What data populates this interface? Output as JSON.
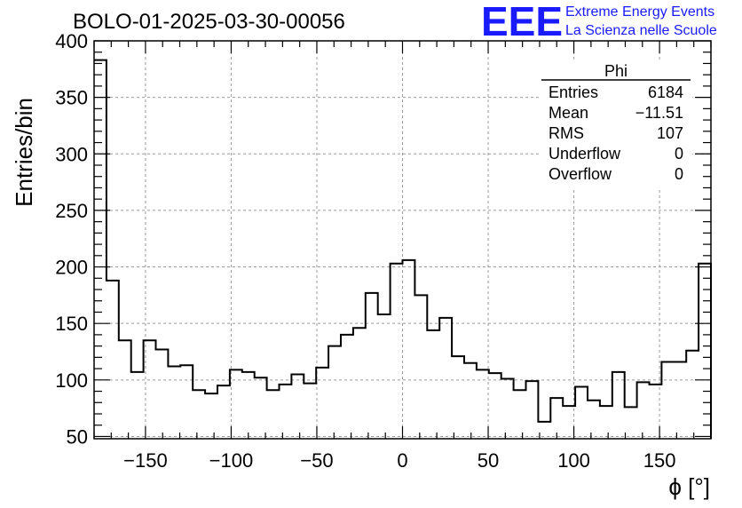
{
  "chart_data": {
    "type": "bar",
    "title": "BOLO-01-2025-03-30-00056",
    "xlabel": "ϕ [°]",
    "ylabel": "Entries/bin",
    "xlim": [
      -180,
      180
    ],
    "ylim": [
      48,
      400
    ],
    "bin_width": 7.2,
    "x_ticks": [
      -150,
      -100,
      -50,
      0,
      50,
      100,
      150
    ],
    "x_tick_labels": [
      "−150",
      "−100",
      "−50",
      "0",
      "50",
      "100",
      "150"
    ],
    "y_ticks": [
      50,
      100,
      150,
      200,
      250,
      300,
      350,
      400
    ],
    "y_tick_labels": [
      "50",
      "100",
      "150",
      "200",
      "250",
      "300",
      "350",
      "400"
    ],
    "grid": true,
    "values": [
      383,
      188,
      135,
      107,
      135,
      127,
      112,
      113,
      91,
      88,
      95,
      109,
      107,
      102,
      91,
      96,
      105,
      97,
      111,
      130,
      140,
      146,
      177,
      158,
      203,
      206,
      175,
      144,
      155,
      121,
      115,
      109,
      106,
      101,
      91,
      99,
      63,
      84,
      77,
      94,
      82,
      77,
      107,
      76,
      98,
      96,
      116,
      116,
      126,
      203
    ],
    "stats_box": {
      "title": "Phi",
      "rows": [
        {
          "label": "Entries",
          "value": "6184"
        },
        {
          "label": "Mean",
          "value": "−11.51"
        },
        {
          "label": "RMS",
          "value": "107"
        },
        {
          "label": "Underflow",
          "value": "0"
        },
        {
          "label": "Overflow",
          "value": "0"
        }
      ]
    }
  },
  "logo": {
    "mark": "EEE",
    "line1": "Extreme Energy Events",
    "line2": "La Scienza nelle Scuole",
    "color": "#1a1aff"
  }
}
